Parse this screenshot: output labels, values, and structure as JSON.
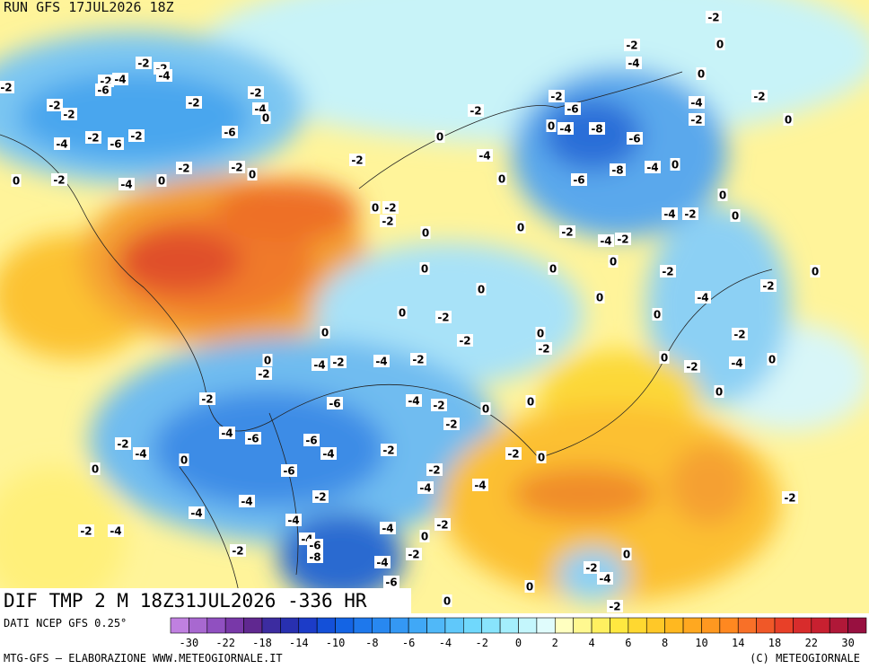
{
  "header": {
    "title": "RUN GFS 17JUL2026 18Z"
  },
  "map": {
    "title": "DIF TMP 2 M 18Z31JUL2026 -336 HR",
    "labels": [
      "-2",
      "0",
      "-2",
      "-4",
      "0",
      "-2",
      "-4",
      "-2",
      "0",
      "-2",
      "-6",
      "0",
      "-4",
      "-8",
      "-6",
      "-8",
      "-4",
      "0",
      "-6",
      "0",
      "-4",
      "-2",
      "0",
      "-2",
      "-4",
      "-2",
      "0",
      "-2",
      "0",
      "-2",
      "-4",
      "0",
      "0",
      "-2",
      "0",
      "-2",
      "-4",
      "0",
      "0",
      "-2",
      "-2",
      "-4",
      "0",
      "0",
      "-2",
      "0",
      "0",
      "0",
      "0",
      "0",
      "0",
      "-2",
      "-2",
      "0",
      "-2",
      "0",
      "-4",
      "-2",
      "-4",
      "-2",
      "0",
      "-2",
      "-6",
      "-4",
      "-2",
      "0",
      "0",
      "-2",
      "-2",
      "-4",
      "-6",
      "-6",
      "-4",
      "-2",
      "-2",
      "0",
      "-2",
      "-6",
      "-4",
      "-4",
      "-2",
      "-2",
      "-4",
      "0",
      "0",
      "-4",
      "-4",
      "-4",
      "-4",
      "-2",
      "0",
      "-2",
      "-4",
      "-4",
      "-6",
      "-8",
      "-2",
      "-2",
      "-4",
      "-6",
      "-2",
      "-4",
      "0",
      "0",
      "0",
      "-2",
      "-2",
      "-2",
      "-4",
      "-2",
      "-4",
      "-6",
      "-2",
      "-2",
      "-2",
      "-2",
      "-2",
      "-4",
      "0",
      "-6",
      "-4",
      "-2",
      "-6",
      "-2",
      "-2",
      "-2",
      "0",
      "0",
      "-2",
      "-4",
      "0",
      "0",
      "-2",
      "-2"
    ]
  },
  "colorbar": {
    "labels": [
      "-30",
      "-22",
      "-18",
      "-14",
      "-10",
      "-8",
      "-6",
      "-4",
      "-2",
      "0",
      "2",
      "4",
      "6",
      "8",
      "10",
      "14",
      "18",
      "22",
      "30"
    ]
  },
  "footer": {
    "source": "DATI NCEP GFS 0.25°",
    "credit": "MTG-GFS — ELABORAZIONE WWW.METEOGIORNALE.IT",
    "copyright": "(C) METEOGIORNALE"
  }
}
